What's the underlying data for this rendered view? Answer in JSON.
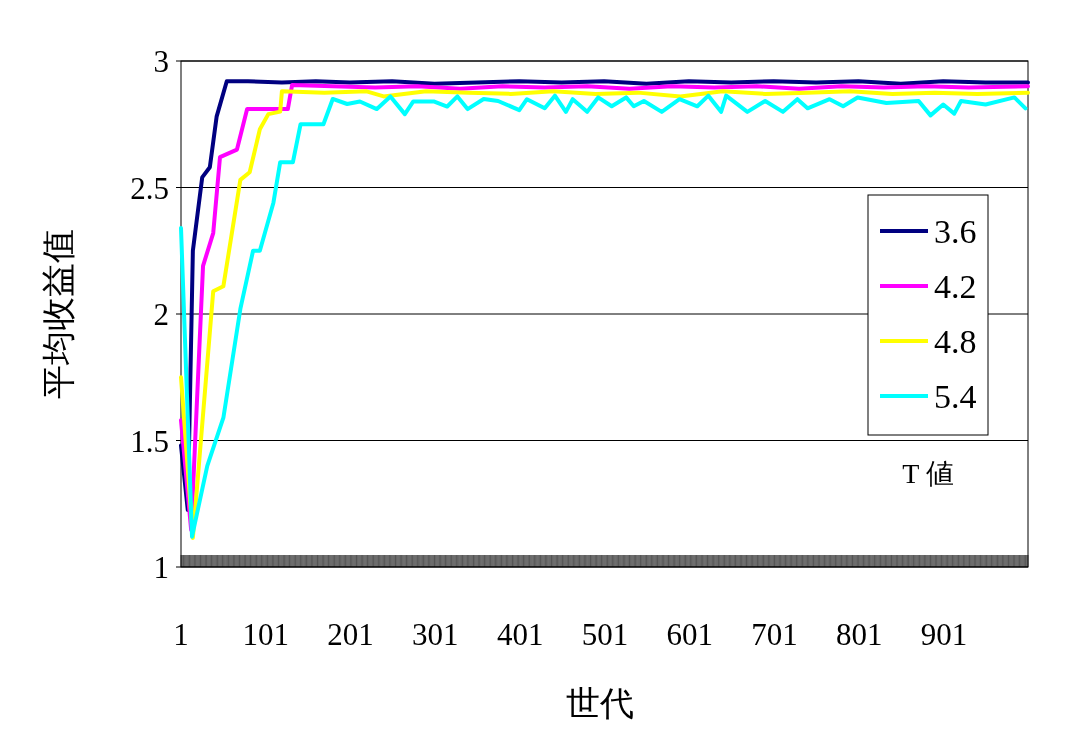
{
  "chart_data": {
    "type": "line",
    "xlabel": "世代",
    "ylabel": "平均收益值",
    "legend_title": "T 値",
    "xlim": [
      1,
      1000
    ],
    "ylim": [
      1,
      3
    ],
    "xticks": [
      1,
      101,
      201,
      301,
      401,
      501,
      601,
      701,
      801,
      901
    ],
    "yticks": [
      1,
      1.5,
      2,
      2.5,
      3
    ],
    "grid": "y",
    "legend": "right",
    "marker": "none",
    "line_style": "solid",
    "series": [
      {
        "name": "3.6",
        "color": "#000080",
        "x": [
          1,
          9,
          15,
          26,
          35,
          43,
          55,
          80,
          120,
          160,
          200,
          250,
          300,
          350,
          400,
          450,
          500,
          550,
          600,
          650,
          700,
          750,
          800,
          850,
          900,
          950,
          1000
        ],
        "values": [
          1.48,
          1.225,
          2.25,
          2.54,
          2.58,
          2.78,
          2.92,
          2.92,
          2.915,
          2.92,
          2.915,
          2.92,
          2.91,
          2.915,
          2.92,
          2.915,
          2.92,
          2.91,
          2.92,
          2.915,
          2.92,
          2.915,
          2.92,
          2.91,
          2.92,
          2.915,
          2.915
        ]
      },
      {
        "name": "4.2",
        "color": "#ff00ff",
        "x": [
          1,
          13,
          27,
          39,
          47,
          67,
          79,
          127,
          132,
          180,
          230,
          280,
          330,
          380,
          430,
          480,
          530,
          580,
          630,
          680,
          730,
          780,
          830,
          880,
          930,
          1000
        ],
        "values": [
          1.58,
          1.146,
          2.19,
          2.32,
          2.62,
          2.65,
          2.81,
          2.81,
          2.905,
          2.9,
          2.895,
          2.9,
          2.89,
          2.9,
          2.895,
          2.9,
          2.89,
          2.9,
          2.895,
          2.9,
          2.89,
          2.9,
          2.895,
          2.9,
          2.895,
          2.9
        ]
      },
      {
        "name": "4.8",
        "color": "#ffff00",
        "x": [
          1,
          15,
          39,
          51,
          71,
          82,
          94,
          104,
          118,
          120,
          170,
          220,
          240,
          290,
          340,
          390,
          440,
          490,
          540,
          590,
          640,
          690,
          740,
          790,
          840,
          890,
          940,
          1000
        ],
        "values": [
          1.75,
          1.115,
          2.09,
          2.11,
          2.53,
          2.56,
          2.73,
          2.79,
          2.8,
          2.88,
          2.875,
          2.88,
          2.86,
          2.88,
          2.875,
          2.87,
          2.88,
          2.87,
          2.875,
          2.86,
          2.88,
          2.87,
          2.875,
          2.88,
          2.87,
          2.875,
          2.87,
          2.875
        ]
      },
      {
        "name": "5.4",
        "color": "#00ffff",
        "x": [
          1,
          14,
          32,
          51,
          71,
          86,
          94,
          110,
          118,
          133,
          142,
          169,
          180,
          197,
          212,
          232,
          248,
          265,
          275,
          299,
          315,
          327,
          339,
          358,
          375,
          400,
          409,
          430,
          442,
          455,
          463,
          480,
          493,
          509,
          526,
          535,
          547,
          568,
          589,
          610,
          623,
          638,
          644,
          669,
          690,
          711,
          728,
          740,
          766,
          782,
          799,
          833,
          871,
          885,
          900,
          913,
          921,
          950,
          984,
          997
        ],
        "values": [
          2.34,
          1.12,
          1.4,
          1.59,
          2.02,
          2.25,
          2.25,
          2.44,
          2.6,
          2.6,
          2.75,
          2.75,
          2.85,
          2.83,
          2.84,
          2.81,
          2.86,
          2.79,
          2.84,
          2.84,
          2.82,
          2.86,
          2.81,
          2.85,
          2.842,
          2.806,
          2.849,
          2.813,
          2.863,
          2.799,
          2.849,
          2.799,
          2.856,
          2.821,
          2.856,
          2.821,
          2.842,
          2.799,
          2.849,
          2.821,
          2.863,
          2.799,
          2.863,
          2.799,
          2.842,
          2.799,
          2.849,
          2.813,
          2.849,
          2.821,
          2.856,
          2.834,
          2.842,
          2.785,
          2.828,
          2.792,
          2.842,
          2.828,
          2.856,
          2.813
        ]
      }
    ]
  }
}
